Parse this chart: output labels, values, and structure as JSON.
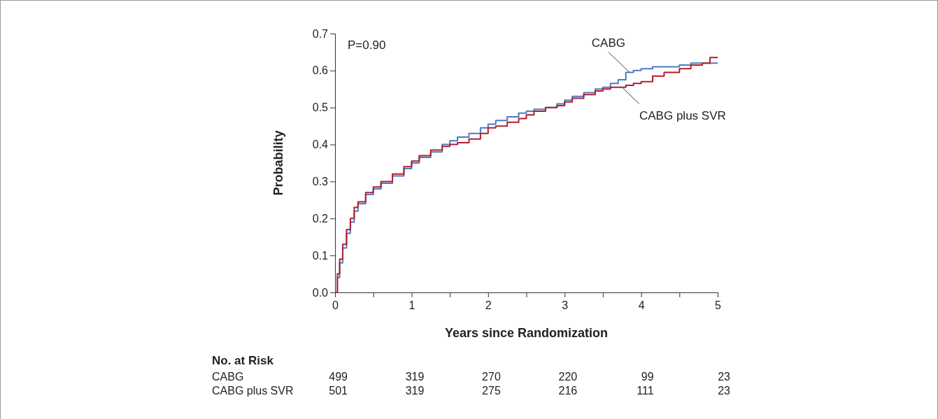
{
  "chart_data": [
    {
      "type": "step",
      "xlabel": "Years since Randomization",
      "ylabel": "Probability",
      "annotations": [
        "P=0.90"
      ],
      "xlim": [
        0,
        5
      ],
      "ylim": [
        0,
        0.7
      ],
      "xticks": [
        0,
        {
          "value": 0.5,
          "label": null
        },
        1,
        {
          "value": 1.5,
          "label": null
        },
        2,
        {
          "value": 2.5,
          "label": null
        },
        3,
        {
          "value": 3.5,
          "label": null
        },
        4,
        {
          "value": 4.5,
          "label": null
        },
        5
      ],
      "yticks": [
        {
          "value": 0,
          "label": "0.0"
        },
        0.1,
        0.2,
        0.3,
        0.4,
        0.5,
        0.6,
        0.7
      ],
      "grid": false,
      "line_style": "solid",
      "series": [
        {
          "name": "CABG",
          "color": "#4a7bc8",
          "x": [
            0,
            0.03,
            0.06,
            0.1,
            0.15,
            0.2,
            0.25,
            0.3,
            0.4,
            0.5,
            0.6,
            0.75,
            0.9,
            1.0,
            1.1,
            1.25,
            1.4,
            1.5,
            1.6,
            1.75,
            1.9,
            2.0,
            2.1,
            2.25,
            2.4,
            2.5,
            2.6,
            2.75,
            2.9,
            3.0,
            3.1,
            3.25,
            3.4,
            3.5,
            3.6,
            3.7,
            3.8,
            3.9,
            4.0,
            4.15,
            4.3,
            4.5,
            4.65,
            4.8,
            5.0
          ],
          "values": [
            0,
            0.04,
            0.08,
            0.12,
            0.16,
            0.19,
            0.22,
            0.24,
            0.265,
            0.28,
            0.295,
            0.315,
            0.335,
            0.35,
            0.365,
            0.38,
            0.4,
            0.41,
            0.42,
            0.43,
            0.445,
            0.455,
            0.465,
            0.475,
            0.485,
            0.49,
            0.495,
            0.5,
            0.51,
            0.52,
            0.53,
            0.54,
            0.55,
            0.555,
            0.565,
            0.575,
            0.595,
            0.6,
            0.605,
            0.61,
            0.61,
            0.615,
            0.62,
            0.62,
            0.62
          ]
        },
        {
          "name": "CABG plus SVR",
          "color": "#b0202c",
          "x": [
            0,
            0.03,
            0.06,
            0.1,
            0.15,
            0.2,
            0.25,
            0.3,
            0.4,
            0.5,
            0.6,
            0.75,
            0.9,
            1.0,
            1.1,
            1.25,
            1.4,
            1.5,
            1.6,
            1.75,
            1.9,
            2.0,
            2.1,
            2.25,
            2.4,
            2.5,
            2.6,
            2.75,
            2.9,
            3.0,
            3.1,
            3.25,
            3.4,
            3.5,
            3.6,
            3.7,
            3.8,
            3.9,
            4.0,
            4.15,
            4.3,
            4.5,
            4.65,
            4.8,
            4.9,
            5.0
          ],
          "values": [
            0,
            0.05,
            0.09,
            0.13,
            0.17,
            0.2,
            0.23,
            0.245,
            0.27,
            0.285,
            0.3,
            0.32,
            0.34,
            0.355,
            0.37,
            0.385,
            0.395,
            0.4,
            0.405,
            0.415,
            0.43,
            0.445,
            0.45,
            0.46,
            0.47,
            0.48,
            0.49,
            0.5,
            0.505,
            0.515,
            0.525,
            0.535,
            0.545,
            0.55,
            0.555,
            0.555,
            0.56,
            0.565,
            0.57,
            0.585,
            0.595,
            0.605,
            0.615,
            0.62,
            0.635,
            0.635
          ]
        }
      ]
    },
    {
      "type": "other",
      "title": "No. at Risk",
      "y_categories": [
        "CABG",
        "CABG plus SVR"
      ],
      "cell_labels": [
        [
          "499",
          "319",
          "270",
          "220",
          "99",
          "23"
        ],
        [
          "501",
          "319",
          "275",
          "216",
          "111",
          "23"
        ]
      ]
    }
  ]
}
